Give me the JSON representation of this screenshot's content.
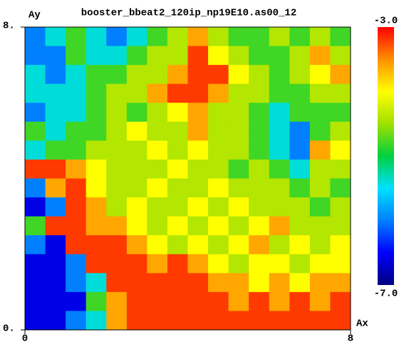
{
  "chart_data": {
    "type": "heatmap",
    "title": "booster_bbeat2_120ip_np19E10.as00_12",
    "xlabel": "Ax",
    "ylabel": "Ay",
    "xlim": [
      0,
      8
    ],
    "ylim": [
      0,
      8
    ],
    "xticks": [
      0,
      8
    ],
    "yticks": [
      {
        "value": 0,
        "label": "0."
      },
      {
        "value": 8,
        "label": "8."
      }
    ],
    "zlim": [
      -7,
      -3
    ],
    "zticks": [
      {
        "value": -3,
        "label": "-3.0"
      },
      {
        "value": -7,
        "label": "-7.0"
      }
    ],
    "colormap": [
      "#000080",
      "#0000ff",
      "#0080ff",
      "#00e0ff",
      "#00d040",
      "#a0e000",
      "#ffff00",
      "#ff9000",
      "#ff0000"
    ],
    "z": [
      [
        -6.0,
        -5.4,
        -4.8,
        -5.4,
        -6.0,
        -5.4,
        -4.8,
        -4.4,
        -3.6,
        -4.4,
        -4.8,
        -4.8,
        -4.4,
        -4.8,
        -4.4,
        -4.8
      ],
      [
        -6.0,
        -6.0,
        -4.8,
        -5.4,
        -5.4,
        -4.8,
        -4.4,
        -4.4,
        -3.2,
        -4.0,
        -4.4,
        -4.8,
        -4.8,
        -4.4,
        -3.6,
        -4.4
      ],
      [
        -5.4,
        -6.0,
        -5.4,
        -4.8,
        -4.8,
        -4.4,
        -4.4,
        -3.6,
        -3.2,
        -3.2,
        -4.0,
        -4.4,
        -4.8,
        -4.4,
        -4.0,
        -3.6
      ],
      [
        -5.4,
        -5.4,
        -5.4,
        -4.8,
        -4.4,
        -4.4,
        -3.6,
        -3.2,
        -3.2,
        -3.6,
        -4.4,
        -4.4,
        -4.8,
        -4.8,
        -4.4,
        -4.4
      ],
      [
        -6.0,
        -5.4,
        -5.4,
        -4.8,
        -4.4,
        -4.8,
        -4.4,
        -4.0,
        -3.6,
        -4.4,
        -4.4,
        -4.8,
        -5.4,
        -4.8,
        -4.8,
        -4.8
      ],
      [
        -4.8,
        -5.4,
        -4.8,
        -4.8,
        -4.4,
        -4.0,
        -4.4,
        -4.4,
        -3.6,
        -4.4,
        -4.4,
        -4.8,
        -5.4,
        -6.0,
        -4.8,
        -4.4
      ],
      [
        -5.4,
        -4.8,
        -4.8,
        -4.4,
        -4.4,
        -4.4,
        -4.0,
        -4.4,
        -4.0,
        -4.4,
        -4.4,
        -4.8,
        -5.4,
        -6.0,
        -3.6,
        -4.0
      ],
      [
        -3.2,
        -3.2,
        -3.6,
        -4.0,
        -4.4,
        -4.4,
        -4.4,
        -4.0,
        -4.4,
        -4.4,
        -4.8,
        -4.4,
        -4.8,
        -5.4,
        -4.4,
        -4.4
      ],
      [
        -6.0,
        -3.6,
        -3.2,
        -4.0,
        -4.4,
        -4.4,
        -4.0,
        -4.4,
        -4.4,
        -4.0,
        -4.4,
        -4.4,
        -4.4,
        -4.8,
        -4.4,
        -4.8
      ],
      [
        -6.6,
        -6.0,
        -3.2,
        -3.6,
        -4.4,
        -4.0,
        -4.4,
        -4.4,
        -4.0,
        -4.4,
        -4.0,
        -4.4,
        -4.4,
        -4.4,
        -4.8,
        -4.4
      ],
      [
        -4.8,
        -3.2,
        -3.2,
        -3.6,
        -3.6,
        -4.0,
        -4.4,
        -4.0,
        -4.4,
        -4.0,
        -4.4,
        -4.0,
        -3.6,
        -4.4,
        -4.4,
        -4.4
      ],
      [
        -6.0,
        -6.6,
        -3.2,
        -3.2,
        -3.2,
        -3.6,
        -4.0,
        -4.4,
        -4.0,
        -4.4,
        -4.0,
        -3.6,
        -4.4,
        -4.0,
        -4.4,
        -4.0
      ],
      [
        -6.6,
        -6.6,
        -6.0,
        -3.2,
        -3.2,
        -3.2,
        -3.6,
        -3.2,
        -3.6,
        -4.0,
        -4.4,
        -4.0,
        -4.0,
        -4.4,
        -4.0,
        -4.0
      ],
      [
        -6.6,
        -6.6,
        -6.0,
        -5.4,
        -3.2,
        -3.2,
        -3.2,
        -3.2,
        -3.2,
        -3.6,
        -3.6,
        -4.0,
        -3.6,
        -4.0,
        -3.6,
        -3.6
      ],
      [
        -6.6,
        -6.6,
        -6.6,
        -4.8,
        -3.6,
        -3.2,
        -3.2,
        -3.2,
        -3.2,
        -3.2,
        -3.6,
        -3.2,
        -3.6,
        -3.2,
        -3.6,
        -3.2
      ],
      [
        -6.6,
        -6.6,
        -6.0,
        -5.4,
        -3.6,
        -3.2,
        -3.2,
        -3.2,
        -3.2,
        -3.2,
        -3.2,
        -3.2,
        -3.2,
        -3.2,
        -3.2,
        -3.2
      ]
    ]
  }
}
